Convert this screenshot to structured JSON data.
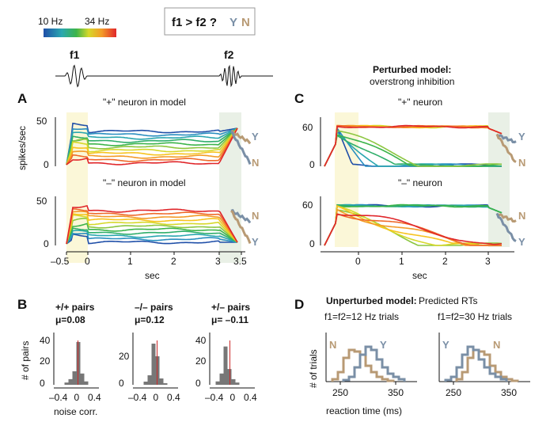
{
  "legend": {
    "low": "10 Hz",
    "high": "34 Hz"
  },
  "question": {
    "text": "f1 > f2 ?",
    "yes": "Y",
    "no": "N"
  },
  "stimulus": {
    "f1": "f1",
    "f2": "f2"
  },
  "colors": {
    "yes": "#7a8fa6",
    "no": "#b89a74",
    "early": "#fbf7d8",
    "late": "#e9f0e6"
  },
  "panelA": {
    "label": "A",
    "top_title": "\"+\" neuron in model",
    "bottom_title": "\"–\" neuron in model",
    "ylabel": "spikes/sec",
    "xlabel": "sec",
    "yticks": [
      "50",
      "0"
    ],
    "xticks": [
      "–0.5",
      "0",
      "1",
      "2",
      "3",
      "3.5"
    ],
    "top_end": {
      "y": "Y",
      "n": "N"
    },
    "bottom_end": {
      "n": "N",
      "y": "Y"
    }
  },
  "panelC": {
    "label": "C",
    "title_bold": "Perturbed model:",
    "title_sub": "overstrong inhibition",
    "top_title": "\"+\" neuron",
    "bottom_title": "\"–\" neuron",
    "xlabel": "sec",
    "yticks": [
      "60",
      "0"
    ],
    "xticks": [
      "0",
      "1",
      "2",
      "3"
    ],
    "top_end": {
      "y": "Y",
      "n": "N"
    },
    "bottom_end": {
      "n": "N",
      "y": "Y"
    }
  },
  "panelB": {
    "label": "B",
    "ylabel": "# of pairs",
    "xlabel": "noise corr.",
    "hists": [
      {
        "title": "+/+ pairs",
        "mu": "μ=0.08",
        "yticks": [
          "40",
          "20",
          "0"
        ],
        "xticks": [
          "–0.4",
          "0",
          "0.4"
        ]
      },
      {
        "title": "–/– pairs",
        "mu": "μ=0.12",
        "yticks": [
          "20",
          "0"
        ],
        "xticks": [
          "–0.4",
          "0",
          "0.4"
        ]
      },
      {
        "title": "+/– pairs",
        "mu": "μ= –0.11",
        "yticks": [
          "40",
          "20",
          "0"
        ],
        "xticks": [
          "–0.4",
          "0",
          "0.4"
        ]
      }
    ]
  },
  "panelD": {
    "label": "D",
    "title_bold": "Unperturbed model:",
    "title_rest": "Predicted RTs",
    "ylabel": "# of trials",
    "xlabel": "reaction time (ms)",
    "plots": [
      {
        "title": "f1=f2=12 Hz trials",
        "left_tag": "N",
        "right_tag": "Y",
        "xticks": [
          "250",
          "350"
        ]
      },
      {
        "title": "f1=f2=30 Hz trials",
        "left_tag": "Y",
        "right_tag": "N",
        "xticks": [
          "250",
          "350"
        ]
      }
    ]
  }
}
